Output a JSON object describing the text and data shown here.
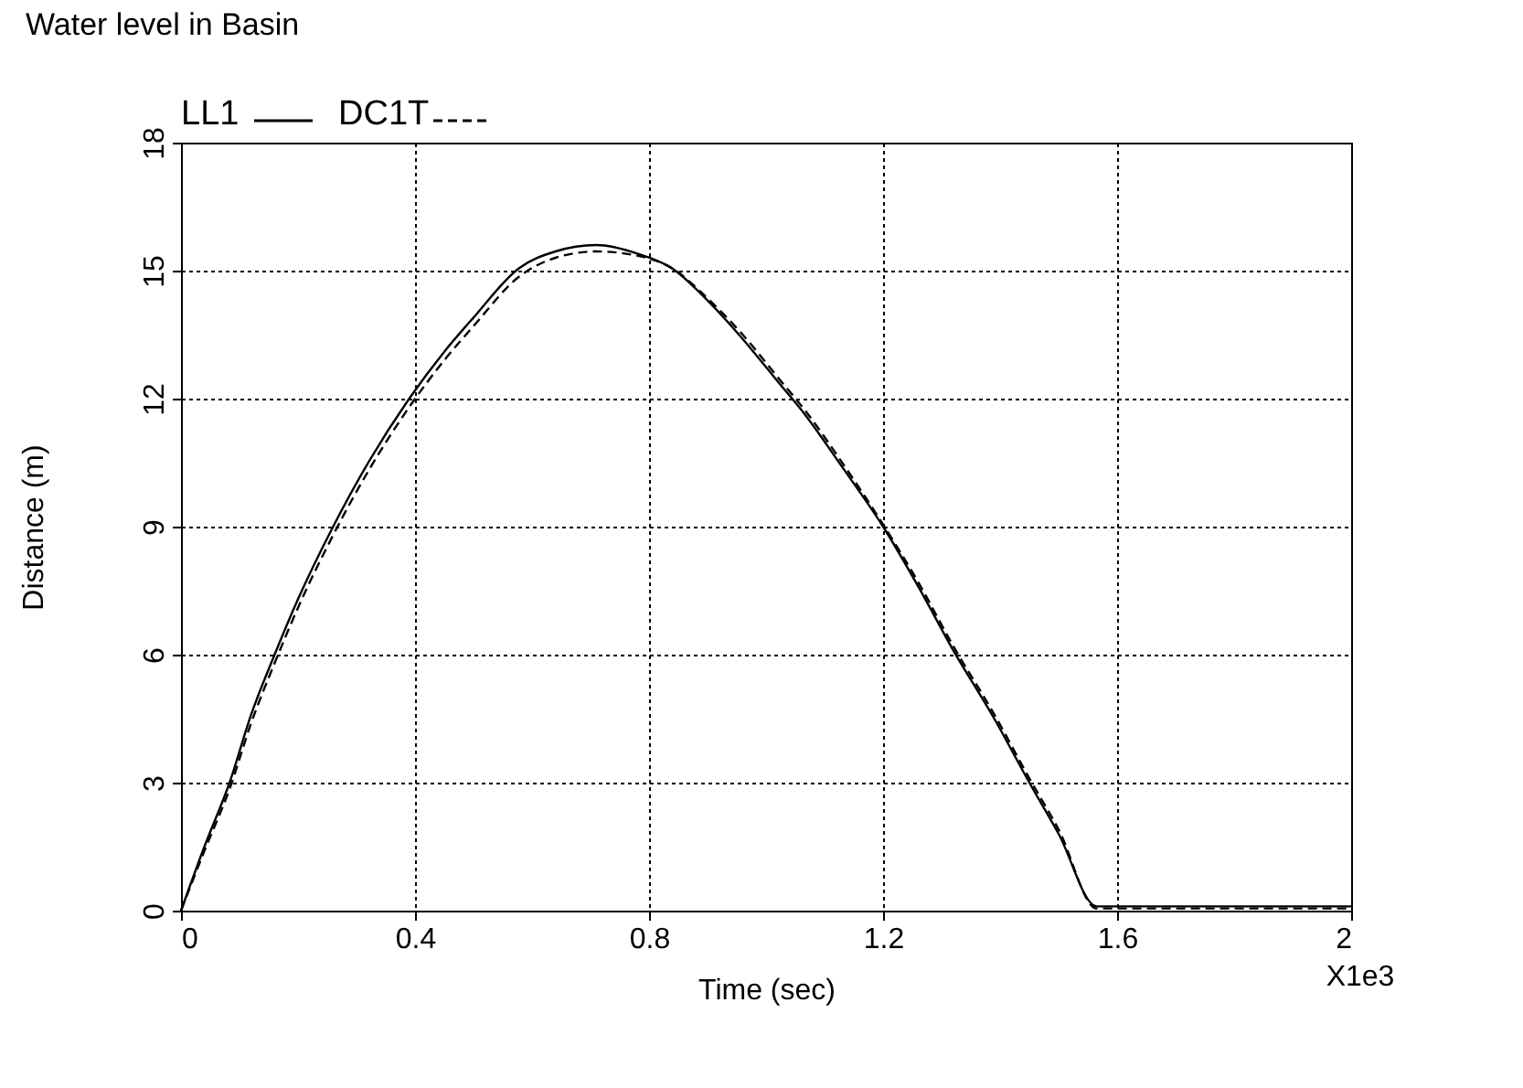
{
  "chart_data": {
    "type": "line",
    "title": "Water level in Basin",
    "xlabel": "Time (sec)",
    "ylabel": "Distance (m)",
    "annotations": [
      "X1e3"
    ],
    "x": [
      0,
      0.04,
      0.083,
      0.12,
      0.16,
      0.2,
      0.26,
      0.32,
      0.39,
      0.45,
      0.5,
      0.577,
      0.64,
      0.71,
      0.78,
      0.84,
      0.9,
      0.96,
      1.02,
      1.068,
      1.13,
      1.2,
      1.26,
      1.32,
      1.39,
      1.45,
      1.5,
      1.565,
      1.6,
      2.0
    ],
    "series": [
      {
        "name": "LL1",
        "color": "#000000",
        "line_style": "solid",
        "values": [
          0,
          1.5,
          3,
          4.6,
          6,
          7.3,
          9,
          10.5,
          12,
          13.1,
          13.9,
          15.05,
          15.45,
          15.6,
          15.4,
          15.05,
          14.3,
          13.4,
          12.4,
          11.6,
          10.4,
          9,
          7.6,
          6.1,
          4.5,
          3,
          1.8,
          0.1,
          0.1,
          0.1
        ]
      },
      {
        "name": "DC1T",
        "color": "#000000",
        "line_style": "dashed",
        "values": [
          0,
          1.4,
          2.85,
          4.4,
          5.8,
          7.1,
          8.8,
          10.3,
          11.8,
          12.9,
          13.7,
          14.85,
          15.3,
          15.45,
          15.35,
          15.05,
          14.35,
          13.5,
          12.5,
          11.7,
          10.5,
          9.05,
          7.7,
          6.2,
          4.6,
          3.1,
          1.9,
          0.05,
          0.05,
          0.05
        ]
      }
    ],
    "xlim": [
      0,
      2
    ],
    "xticks": [
      0,
      0.4,
      0.8,
      1.2,
      1.6,
      2
    ],
    "ylim": [
      0,
      18
    ],
    "yticks": [
      0,
      3,
      6,
      9,
      12,
      15,
      18
    ],
    "grid": true,
    "legend": "top left",
    "marker": "none"
  }
}
